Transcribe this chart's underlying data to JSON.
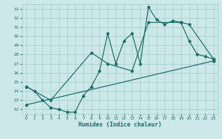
{
  "xlabel": "Humidex (Indice chaleur)",
  "bg_color": "#cce8e8",
  "grid_color": "#aed4d0",
  "line_color": "#1a6e6a",
  "xlim": [
    -0.5,
    23.5
  ],
  "ylim": [
    21.5,
    33.5
  ],
  "xticks": [
    0,
    1,
    2,
    3,
    4,
    5,
    6,
    7,
    8,
    9,
    10,
    11,
    12,
    13,
    14,
    15,
    16,
    17,
    18,
    19,
    20,
    21,
    22,
    23
  ],
  "yticks": [
    22,
    23,
    24,
    25,
    26,
    27,
    28,
    29,
    30,
    31,
    32,
    33
  ],
  "line1_x": [
    0,
    1,
    2,
    3,
    4,
    5,
    6,
    7,
    8,
    9,
    10,
    11,
    12,
    13,
    14,
    15,
    16,
    17,
    18,
    19,
    20,
    21,
    22,
    23
  ],
  "line1_y": [
    24.5,
    24.0,
    23.0,
    22.2,
    22.0,
    21.7,
    21.7,
    23.5,
    24.5,
    26.2,
    30.3,
    27.0,
    29.5,
    30.3,
    27.0,
    33.2,
    31.8,
    31.3,
    31.7,
    31.5,
    29.5,
    28.0,
    27.8,
    27.5
  ],
  "line2_x": [
    0,
    3,
    8,
    10,
    13,
    15,
    19,
    20,
    23
  ],
  "line2_y": [
    24.5,
    23.0,
    28.2,
    27.0,
    26.2,
    31.5,
    31.5,
    31.3,
    27.5
  ],
  "line3_x": [
    0,
    23
  ],
  "line3_y": [
    22.5,
    27.3
  ]
}
